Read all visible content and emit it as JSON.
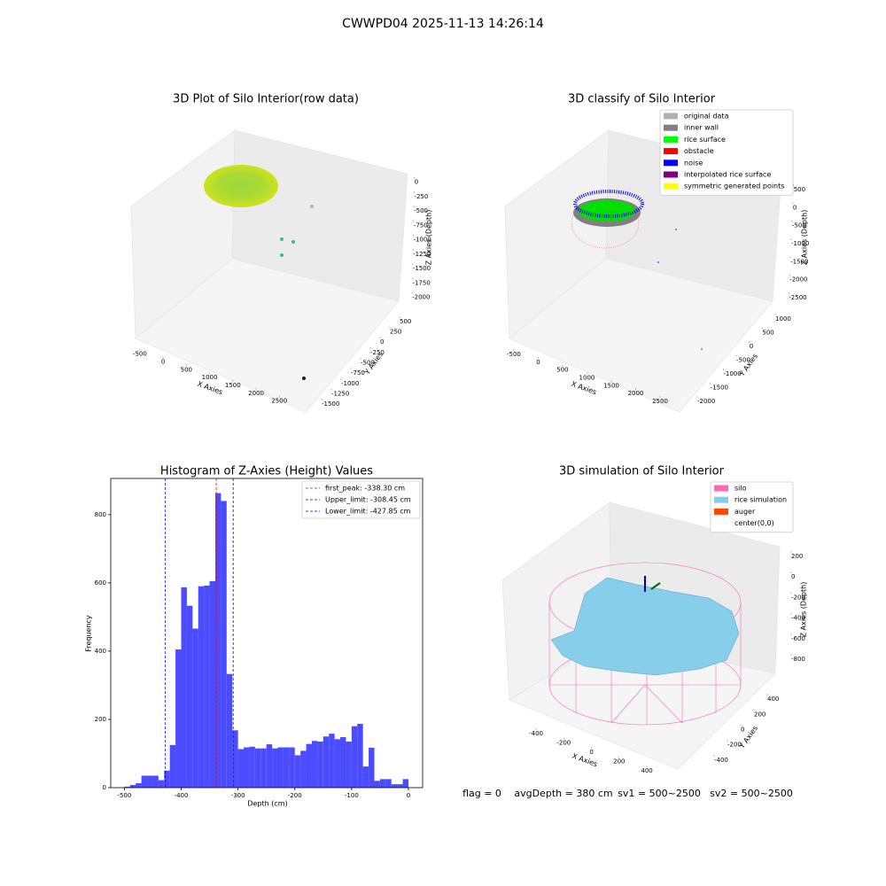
{
  "figure_title": "CWWPD04 2025-11-13 14:26:14",
  "status": [
    "flag = 0",
    "avgDepth = 380 cm",
    "sv1 = 500~2500",
    "sv2 = 500~2500"
  ],
  "chart_data": [
    {
      "type": "scatter3d",
      "title": "3D Plot of Silo Interior(row data)",
      "xlabel": "X Axies",
      "ylabel": "Y Axies",
      "zlabel": "Z Axies (Depth)",
      "xlim": [
        -650,
        2800
      ],
      "xticks": [
        -500,
        0,
        500,
        1000,
        1500,
        2000,
        2500
      ],
      "ylim": [
        -1600,
        650
      ],
      "yticks": [
        -1500,
        -1250,
        -1000,
        -750,
        -500,
        -250,
        0,
        250,
        500
      ],
      "zlim": [
        -2100,
        150
      ],
      "zticks": [
        -2000,
        -1750,
        -1500,
        -1250,
        -1000,
        -750,
        -500,
        -250,
        0
      ]
    },
    {
      "type": "scatter3d",
      "title": "3D classify of Silo Interior",
      "xlabel": "X Axies",
      "ylabel": "Y Axies",
      "zlabel": "Z Axies (Depth)",
      "xlim": [
        -650,
        2800
      ],
      "xticks": [
        -500,
        0,
        500,
        1000,
        1500,
        2000,
        2500
      ],
      "ylim": [
        -2150,
        1200
      ],
      "yticks": [
        -2000,
        -1500,
        -1000,
        -500,
        0,
        500,
        1000
      ],
      "zlim": [
        -2650,
        650
      ],
      "zticks": [
        -2500,
        -2000,
        -1500,
        -1000,
        -500,
        0,
        500
      ],
      "legend": [
        {
          "name": "original data",
          "color": "#b0b0b0"
        },
        {
          "name": "inner wall",
          "color": "#808080"
        },
        {
          "name": "rice surface",
          "color": "#00ff00"
        },
        {
          "name": "obstacle",
          "color": "#ff0000"
        },
        {
          "name": "noise",
          "color": "#0000ff"
        },
        {
          "name": "interpolated rice surface",
          "color": "#800080"
        },
        {
          "name": "symmetric generated points",
          "color": "#ffff00"
        }
      ]
    },
    {
      "type": "histogram",
      "title": "Histogram of Z-Axies (Height) Values",
      "xlabel": "Depth (cm)",
      "ylabel": "Frequency",
      "color": "#4b4bff",
      "bins": [
        -500,
        -490,
        -480,
        -470,
        -460,
        -450,
        -440,
        -430,
        -420,
        -410,
        -400,
        -390,
        -380,
        -370,
        -360,
        -350,
        -340,
        -330,
        -320,
        -310,
        -300,
        -290,
        -280,
        -270,
        -260,
        -250,
        -240,
        -230,
        -220,
        -210,
        -200,
        -190,
        -180,
        -170,
        -160,
        -150,
        -140,
        -130,
        -120,
        -110,
        -100,
        -90,
        -80,
        -70,
        -60,
        -50,
        -40,
        -30,
        -20,
        -10,
        0
      ],
      "values": [
        3,
        8,
        13,
        35,
        35,
        35,
        22,
        50,
        125,
        405,
        587,
        533,
        466,
        590,
        592,
        605,
        863,
        840,
        333,
        168,
        113,
        118,
        120,
        115,
        115,
        127,
        115,
        118,
        118,
        118,
        95,
        108,
        128,
        137,
        135,
        150,
        158,
        142,
        148,
        135,
        180,
        187,
        62,
        117,
        20,
        25,
        25,
        10,
        10,
        25
      ],
      "xlim": [
        -524,
        25
      ],
      "xticks": [
        -500,
        -400,
        -300,
        -200,
        -100,
        0
      ],
      "ylim": [
        0,
        906
      ],
      "yticks": [
        0,
        200,
        400,
        600,
        800
      ],
      "vlines": [
        {
          "label": "first_peak: -338.30 cm",
          "value": -338.3,
          "color": "#ff0000"
        },
        {
          "label": "Upper_limit: -308.45 cm",
          "value": -308.45,
          "color": "#0000ff"
        },
        {
          "label": "Lower_limit: -427.85 cm",
          "value": -427.85,
          "color": "#0000ff"
        }
      ]
    },
    {
      "type": "surface3d",
      "title": "3D simulation of Silo Interior",
      "xlabel": "X Axies",
      "ylabel": "Y Axies",
      "zlabel": "Z Axies (Depth)",
      "xlim": [
        -520,
        520
      ],
      "xticks": [
        -400,
        -200,
        0,
        200,
        400
      ],
      "ylim": [
        -520,
        520
      ],
      "yticks": [
        -400,
        -200,
        0,
        200,
        400
      ],
      "zlim": [
        -950,
        320
      ],
      "zticks": [
        -800,
        -600,
        -400,
        -200,
        0,
        200
      ],
      "legend": [
        {
          "name": "silo",
          "color": "#ff69b4"
        },
        {
          "name": "rice simulation",
          "color": "#87ceeb"
        },
        {
          "name": "auger",
          "color": "#ff4500"
        },
        {
          "name": "center(0,0)",
          "color": "#ffffff"
        }
      ]
    }
  ]
}
